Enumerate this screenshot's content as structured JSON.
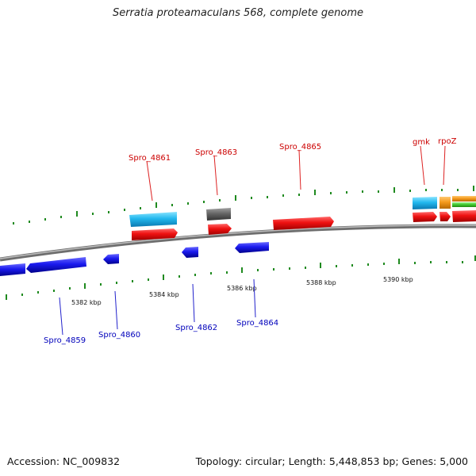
{
  "header": {
    "title": "Serratia proteamaculans 568, complete genome"
  },
  "footer": {
    "accession": "Accession: NC_009832",
    "summary": "Topology: circular; Length: 5,448,853 bp; Genes: 5,000"
  },
  "scale": {
    "ticks": [
      "5382 kbp",
      "5384 kbp",
      "5386 kbp",
      "5388 kbp",
      "5390 kbp"
    ]
  },
  "gene_labels": {
    "forward": [
      "Spro_4861",
      "Spro_4863",
      "Spro_4865",
      "gmk",
      "rpoZ"
    ],
    "reverse": [
      "Spro_4859",
      "Spro_4860",
      "Spro_4862",
      "Spro_4864"
    ]
  },
  "colors": {
    "forward_cds": "#ee1111",
    "reverse_cds": "#1a1aee",
    "gene_feature": "#22b8ee",
    "pseudo_feature": "#666666",
    "orange_feature": "#f59a1c",
    "green_feature": "#44cc33",
    "tick": "#1f8a1f",
    "backbone": "#8a8a8a",
    "forward_label": "#cc0000",
    "reverse_label": "#0000bb"
  }
}
